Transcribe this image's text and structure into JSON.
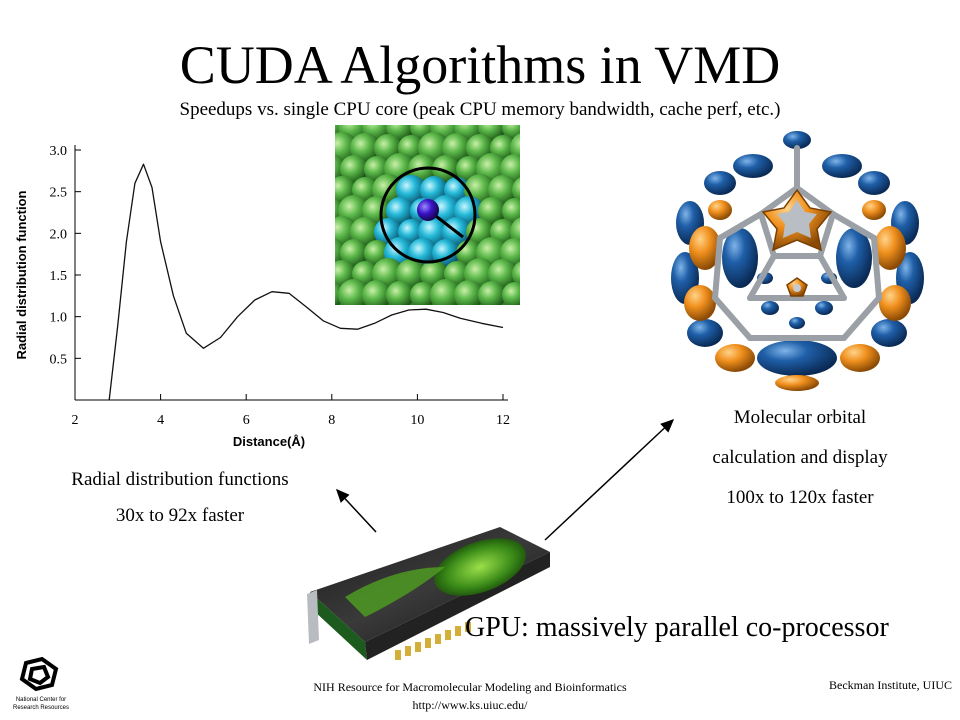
{
  "slide": {
    "title": "CUDA Algorithms in VMD",
    "subtitle": "Speedups vs. single CPU core (peak CPU memory bandwidth, cache perf, etc.)"
  },
  "rdf": {
    "caption_line1": "Radial distribution functions",
    "caption_line2": "30x to 92x faster"
  },
  "mo": {
    "caption_line1": "Molecular orbital",
    "caption_line2": "calculation and display",
    "caption_line3": "100x to 120x faster"
  },
  "gpu": {
    "caption": "GPU: massively parallel co-processor"
  },
  "footer": {
    "left_line1": "NIH Resource for Macromolecular Modeling and Bioinformatics",
    "left_line2": "http://www.ks.uiuc.edu/",
    "right": "Beckman Institute, UIUC",
    "logo_text": "National Center for Research Resources"
  },
  "icons": {
    "simulation": "molecular-simulation-image",
    "orbital": "molecular-orbital-image",
    "gpu": "gpu-card-image",
    "logo": "ncrr-logo"
  },
  "chart_data": {
    "type": "line",
    "title": "",
    "xlabel": "Distance(Å)",
    "ylabel": "Radial distribution function",
    "xlim": [
      2,
      12
    ],
    "ylim": [
      0,
      3.0
    ],
    "x_ticks": [
      "2",
      "4",
      "6",
      "8",
      "10",
      "12"
    ],
    "y_ticks": [
      "0.5",
      "1.0",
      "1.5",
      "2.0",
      "2.5",
      "3.0"
    ],
    "grid": false,
    "series": [
      {
        "x": [
          2.8,
          3.0,
          3.2,
          3.4,
          3.6,
          3.8,
          4.0,
          4.3,
          4.6,
          5.0,
          5.4,
          5.8,
          6.2,
          6.6,
          7.0,
          7.4,
          7.8,
          8.2,
          8.6,
          9.0,
          9.4,
          9.8,
          10.2,
          10.6,
          11.0,
          11.5,
          12.0
        ],
        "y": [
          0.0,
          0.9,
          1.9,
          2.6,
          2.83,
          2.55,
          1.9,
          1.25,
          0.8,
          0.62,
          0.75,
          1.0,
          1.2,
          1.3,
          1.28,
          1.12,
          0.95,
          0.86,
          0.85,
          0.92,
          1.02,
          1.08,
          1.09,
          1.05,
          0.98,
          0.92,
          0.87
        ]
      }
    ]
  }
}
